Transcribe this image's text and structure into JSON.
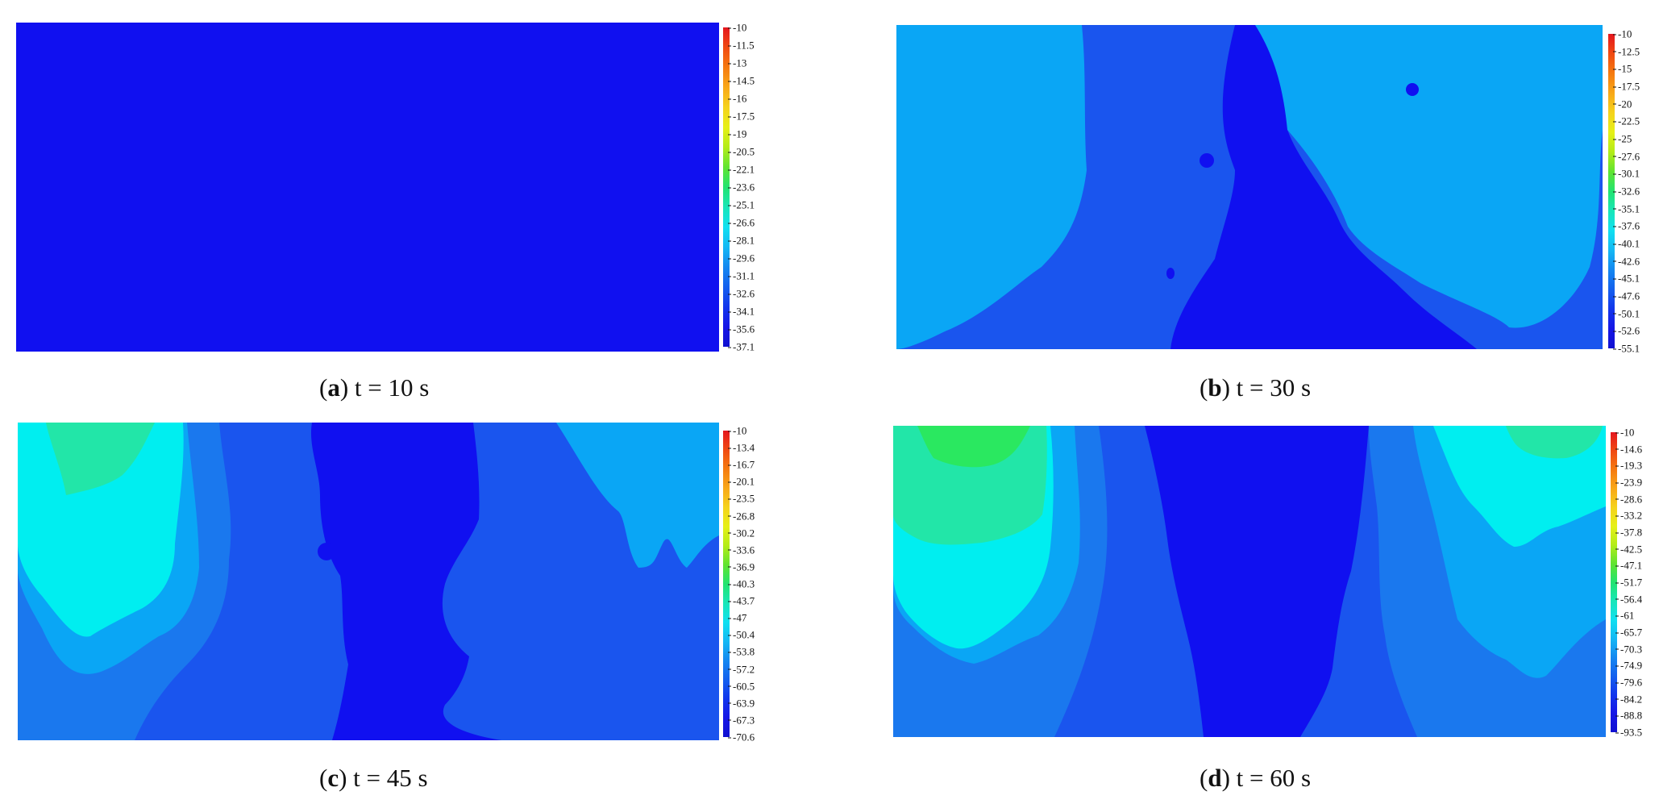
{
  "chart_data": [
    {
      "type": "heatmap",
      "caption_letter": "a",
      "caption_text": "t = 10 s",
      "colorbar_ticks": [
        "-10",
        "-11.5",
        "-13",
        "-14.5",
        "-16",
        "-17.5",
        "-19",
        "-20.5",
        "-22.1",
        "-23.6",
        "-25.1",
        "-26.6",
        "-28.1",
        "-29.6",
        "-31.1",
        "-32.6",
        "-34.1",
        "-35.6",
        "-37.1"
      ],
      "zrange": [
        -37.1,
        -10
      ]
    },
    {
      "type": "heatmap",
      "caption_letter": "b",
      "caption_text": "t = 30 s",
      "colorbar_ticks": [
        "-10",
        "-12.5",
        "-15",
        "-17.5",
        "-20",
        "-22.5",
        "-25",
        "-27.6",
        "-30.1",
        "-32.6",
        "-35.1",
        "-37.6",
        "-40.1",
        "-42.6",
        "-45.1",
        "-47.6",
        "-50.1",
        "-52.6",
        "-55.1"
      ],
      "zrange": [
        -55.1,
        -10
      ]
    },
    {
      "type": "heatmap",
      "caption_letter": "c",
      "caption_text": "t = 45 s",
      "colorbar_ticks": [
        "-10",
        "-13.4",
        "-16.7",
        "-20.1",
        "-23.5",
        "-26.8",
        "-30.2",
        "-33.6",
        "-36.9",
        "-40.3",
        "-43.7",
        "-47",
        "-50.4",
        "-53.8",
        "-57.2",
        "-60.5",
        "-63.9",
        "-67.3",
        "-70.6"
      ],
      "zrange": [
        -70.6,
        -10
      ]
    },
    {
      "type": "heatmap",
      "caption_letter": "d",
      "caption_text": "t = 60 s",
      "colorbar_ticks": [
        "-10",
        "-14.6",
        "-19.3",
        "-23.9",
        "-28.6",
        "-33.2",
        "-37.8",
        "-42.5",
        "-47.1",
        "-51.7",
        "-56.4",
        "-61",
        "-65.7",
        "-70.3",
        "-74.9",
        "-79.6",
        "-84.2",
        "-88.8",
        "-93.5"
      ],
      "zrange": [
        -93.5,
        -10
      ]
    }
  ],
  "colors": {
    "deep_blue": "#1010f0",
    "blue": "#1a55ee",
    "mid_blue": "#1a78ee",
    "light_blue": "#0aa6f5",
    "cyan": "#00eef0",
    "aqua_green": "#22e6a8",
    "green": "#2ae860",
    "colorbar": [
      "#e4161e",
      "#f04a12",
      "#f57a10",
      "#f8a818",
      "#f5d21c",
      "#e6f018",
      "#b4ec18",
      "#60e430",
      "#22e470",
      "#18e6b8",
      "#10e0f0",
      "#14b8f4",
      "#1488f0",
      "#1460ee",
      "#1236ec",
      "#1616e6",
      "#1010d0"
    ]
  }
}
